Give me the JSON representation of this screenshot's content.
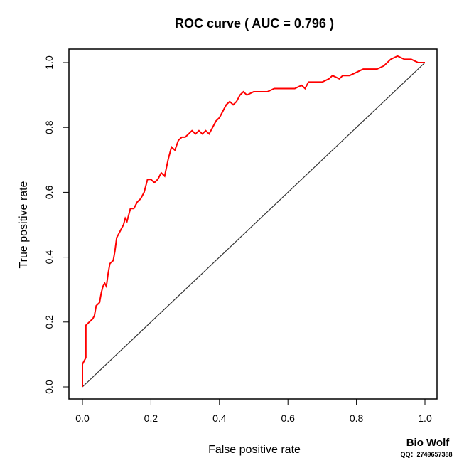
{
  "chart_data": {
    "type": "line",
    "title": "ROC curve ( AUC =  0.796 )",
    "xlabel": "False positive rate",
    "ylabel": "True positive rate",
    "xlim": [
      0,
      1
    ],
    "ylim": [
      0,
      1
    ],
    "xticks": [
      "0.0",
      "0.2",
      "0.4",
      "0.6",
      "0.8",
      "1.0"
    ],
    "yticks": [
      "0.0",
      "0.2",
      "0.4",
      "0.6",
      "0.8",
      "1.0"
    ],
    "grid": false,
    "colors": {
      "roc": "#ff0000",
      "diagonal": "#333333"
    },
    "series": [
      {
        "points": [
          [
            0.0,
            0.0
          ],
          [
            0.0,
            0.07
          ],
          [
            0.005,
            0.08
          ],
          [
            0.01,
            0.09
          ],
          [
            0.01,
            0.19
          ],
          [
            0.02,
            0.2
          ],
          [
            0.03,
            0.21
          ],
          [
            0.035,
            0.22
          ],
          [
            0.04,
            0.25
          ],
          [
            0.05,
            0.26
          ],
          [
            0.055,
            0.29
          ],
          [
            0.06,
            0.31
          ],
          [
            0.065,
            0.32
          ],
          [
            0.07,
            0.31
          ],
          [
            0.075,
            0.35
          ],
          [
            0.08,
            0.38
          ],
          [
            0.09,
            0.39
          ],
          [
            0.095,
            0.42
          ],
          [
            0.1,
            0.46
          ],
          [
            0.105,
            0.47
          ],
          [
            0.11,
            0.48
          ],
          [
            0.12,
            0.5
          ],
          [
            0.125,
            0.52
          ],
          [
            0.13,
            0.51
          ],
          [
            0.14,
            0.55
          ],
          [
            0.15,
            0.55
          ],
          [
            0.16,
            0.57
          ],
          [
            0.17,
            0.58
          ],
          [
            0.18,
            0.6
          ],
          [
            0.19,
            0.64
          ],
          [
            0.2,
            0.64
          ],
          [
            0.21,
            0.63
          ],
          [
            0.22,
            0.64
          ],
          [
            0.23,
            0.66
          ],
          [
            0.24,
            0.65
          ],
          [
            0.25,
            0.7
          ],
          [
            0.26,
            0.74
          ],
          [
            0.27,
            0.73
          ],
          [
            0.28,
            0.76
          ],
          [
            0.29,
            0.77
          ],
          [
            0.3,
            0.77
          ],
          [
            0.31,
            0.78
          ],
          [
            0.32,
            0.79
          ],
          [
            0.33,
            0.78
          ],
          [
            0.34,
            0.79
          ],
          [
            0.35,
            0.78
          ],
          [
            0.36,
            0.79
          ],
          [
            0.37,
            0.78
          ],
          [
            0.38,
            0.8
          ],
          [
            0.39,
            0.82
          ],
          [
            0.4,
            0.83
          ],
          [
            0.41,
            0.85
          ],
          [
            0.42,
            0.87
          ],
          [
            0.43,
            0.88
          ],
          [
            0.44,
            0.87
          ],
          [
            0.45,
            0.88
          ],
          [
            0.46,
            0.9
          ],
          [
            0.47,
            0.91
          ],
          [
            0.48,
            0.9
          ],
          [
            0.5,
            0.91
          ],
          [
            0.52,
            0.91
          ],
          [
            0.54,
            0.91
          ],
          [
            0.56,
            0.92
          ],
          [
            0.58,
            0.92
          ],
          [
            0.6,
            0.92
          ],
          [
            0.62,
            0.92
          ],
          [
            0.64,
            0.93
          ],
          [
            0.65,
            0.92
          ],
          [
            0.66,
            0.94
          ],
          [
            0.68,
            0.94
          ],
          [
            0.7,
            0.94
          ],
          [
            0.72,
            0.95
          ],
          [
            0.73,
            0.96
          ],
          [
            0.75,
            0.95
          ],
          [
            0.76,
            0.96
          ],
          [
            0.78,
            0.96
          ],
          [
            0.8,
            0.97
          ],
          [
            0.82,
            0.98
          ],
          [
            0.84,
            0.98
          ],
          [
            0.86,
            0.98
          ],
          [
            0.88,
            0.99
          ],
          [
            0.9,
            1.01
          ],
          [
            0.92,
            1.02
          ],
          [
            0.94,
            1.01
          ],
          [
            0.96,
            1.01
          ],
          [
            0.98,
            1.0
          ],
          [
            1.0,
            1.0
          ]
        ]
      },
      {
        "points": [
          [
            0.0,
            0.0
          ],
          [
            1.0,
            1.0
          ]
        ]
      }
    ],
    "watermark": {
      "name": "Bio  Wolf",
      "contact": "QQ：2749657388"
    }
  }
}
